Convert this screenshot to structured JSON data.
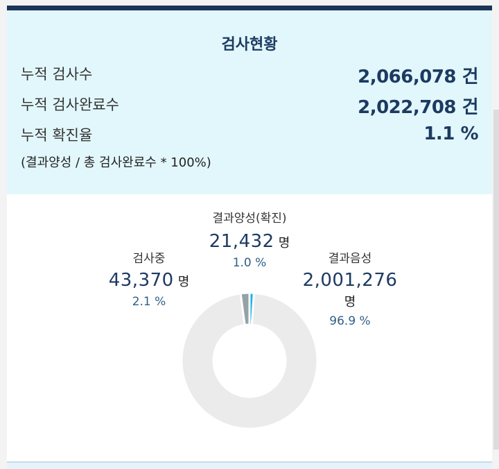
{
  "summary": {
    "title": "검사현황",
    "rows": [
      {
        "label": "누적 검사수",
        "value": "2,066,078 건"
      },
      {
        "label": "누적 검사완료수",
        "value": "2,022,708 건"
      },
      {
        "label": "누적 확진율",
        "value": "1.1 %"
      }
    ],
    "note": "(결과양성 / 총 검사완료수 * 100%)"
  },
  "chart_data": {
    "type": "pie",
    "donut": true,
    "unit": "명",
    "slices": [
      {
        "name": "결과양성(확진)",
        "count": 21432,
        "count_label": "21,432",
        "percent": 1.0,
        "percent_label": "1.0 %",
        "color": "#1ab0ea"
      },
      {
        "name": "결과음성",
        "count": 2001276,
        "count_label": "2,001,276",
        "percent": 96.9,
        "percent_label": "96.9 %",
        "color": "#ebebeb"
      },
      {
        "name": "검사중",
        "count": 43370,
        "count_label": "43,370",
        "percent": 2.1,
        "percent_label": "2.1 %",
        "color": "#95a2a6"
      }
    ]
  }
}
